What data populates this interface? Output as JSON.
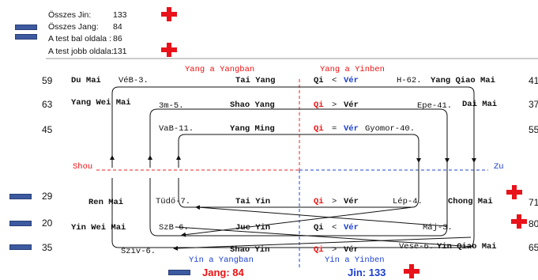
{
  "summary": {
    "osszes_jin_label": "Összes Jin:",
    "osszes_jin_value": "133",
    "osszes_jang_label": "Összes Jang:",
    "osszes_jang_value": "84",
    "bal_label": "A test bal oldala :",
    "bal_value": "86",
    "jobb_label": "A test jobb oldala:",
    "jobb_value": "131"
  },
  "header": {
    "yang_yangban": "Yang a Yangban",
    "yang_yinben": "Yang a Yinben",
    "yin_yangban": "Yin a Yangban",
    "yin_yinben": "Yin a Yinben"
  },
  "footer": {
    "jang_total": "Jang: 84",
    "jin_total": "Jin: 133"
  },
  "divider": {
    "shou": "Shou",
    "zu": "Zu"
  },
  "rows": [
    {
      "left_num": "59",
      "left_name": "Du Mai",
      "left_point": "VéB-3.",
      "meridian": "Tai Yang",
      "qi": "Qi",
      "op": "<",
      "ver": "Vér",
      "right_point": "H-62.",
      "right_name": "Yang Qiao Mai",
      "right_num": "41"
    },
    {
      "left_num": "63",
      "left_name": "Yang Wei Mai",
      "left_point": "3m-5.",
      "meridian": "Shao Yang",
      "qi": "Qi",
      "op": ">",
      "ver": "Vér",
      "right_point": "Epe-41.",
      "right_name": "Dai Mai",
      "right_num": "37"
    },
    {
      "left_num": "45",
      "left_name": "",
      "left_point": "VaB-11.",
      "meridian": "Yang Ming",
      "qi": "Qi",
      "op": "=",
      "ver": "Vér",
      "right_point": "Gyomor-40.",
      "right_name": "",
      "right_num": "55"
    },
    {
      "left_num": "29",
      "left_name": "Ren Mai",
      "left_point": "Tüdő-7.",
      "meridian": "Tai Yin",
      "qi": "Qi",
      "op": ">",
      "ver": "Vér",
      "right_point": "Lép-4.",
      "right_name": "Chong Mai",
      "right_num": "71"
    },
    {
      "left_num": "20",
      "left_name": "Yin Wei Mai",
      "left_point": "SzB-6.",
      "meridian": "Jue Yin",
      "qi": "Qi",
      "op": "<",
      "ver": "Vér",
      "right_point": "Máj-3.",
      "right_name": "",
      "right_num": "80"
    },
    {
      "left_num": "35",
      "left_name": "",
      "left_point": "Szív-6.",
      "meridian": "Shao Yin",
      "qi": "Qi",
      "op": ">",
      "ver": "Vér",
      "right_point": "Vese-6.",
      "right_name": "Yin Qiao Mai",
      "right_num": "65"
    }
  ],
  "icons": [
    "plus-icon",
    "minus-icon"
  ]
}
